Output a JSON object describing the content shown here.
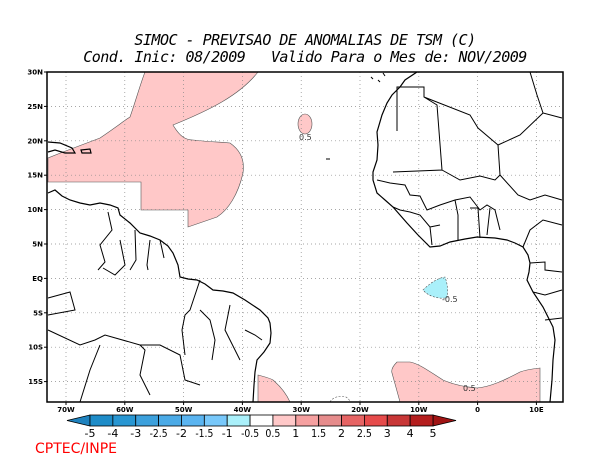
{
  "title": {
    "line1": "SIMOC - PREVISAO DE ANOMALIAS DE TSM (C)",
    "line2": "Cond. Inic: 08/2009   Valido Para o Mes de: NOV/2009"
  },
  "map": {
    "lon_labels": [
      "70W",
      "60W",
      "50W",
      "40W",
      "30W",
      "20W",
      "10W",
      "0",
      "10E"
    ],
    "lat_labels": [
      "30N",
      "25N",
      "20N",
      "15N",
      "10N",
      "5N",
      "EQ",
      "5S",
      "10S",
      "15S"
    ],
    "contour_labels": [
      "0.5",
      "-0.5",
      "0.5"
    ],
    "colors": {
      "positive": "#ffc8c8",
      "negative": "#aaf0fa"
    }
  },
  "colorbar": {
    "labels": [
      "-5",
      "-4",
      "-3",
      "-2.5",
      "-2",
      "-1.5",
      "-1",
      "-0.5",
      "0.5",
      "1",
      "1.5",
      "2",
      "2.5",
      "3",
      "4",
      "5"
    ],
    "colors": [
      "#1e8cc8",
      "#2896d2",
      "#3ca0dc",
      "#4baae6",
      "#5ab4f0",
      "#78c8fa",
      "#aaf0fa",
      "#ffffff",
      "#ffc8c8",
      "#f5a0a0",
      "#e68c8c",
      "#e66464",
      "#e64b4b",
      "#c83737",
      "#b41e1e"
    ],
    "low_color": "#1e82be",
    "high_color": "#a01414"
  },
  "credit": "CPTEC/INPE"
}
